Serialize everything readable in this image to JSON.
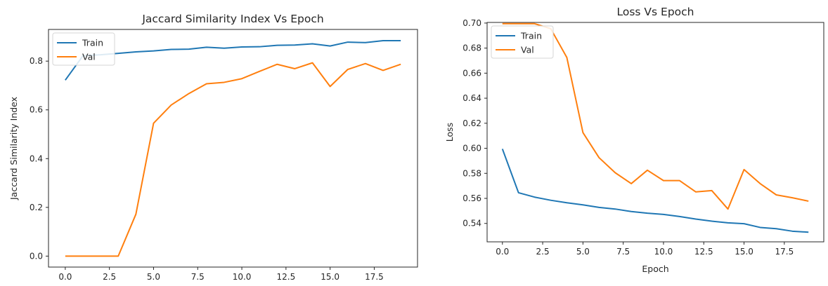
{
  "chart_data": [
    {
      "type": "line",
      "title": "Jaccard Similarity Index Vs Epoch",
      "xlabel": "",
      "ylabel": "Jaccard Similarity Index",
      "xlim": [
        -0.95,
        19.95
      ],
      "ylim": [
        -0.045,
        0.93
      ],
      "x": [
        0,
        1,
        2,
        3,
        4,
        5,
        6,
        7,
        8,
        9,
        10,
        11,
        12,
        13,
        14,
        15,
        16,
        17,
        18,
        19
      ],
      "xticks": [
        0.0,
        2.5,
        5.0,
        7.5,
        10.0,
        12.5,
        15.0,
        17.5
      ],
      "xtick_labels": [
        "0.0",
        "2.5",
        "5.0",
        "7.5",
        "10.0",
        "12.5",
        "15.0",
        "17.5"
      ],
      "yticks": [
        0.0,
        0.2,
        0.4,
        0.6,
        0.8
      ],
      "ytick_labels": [
        "0.0",
        "0.2",
        "0.4",
        "0.6",
        "0.8"
      ],
      "legend_position": "top-left",
      "grid": false,
      "series": [
        {
          "name": "Train",
          "color": "#1f77b4",
          "values": [
            0.722,
            0.822,
            0.826,
            0.832,
            0.838,
            0.842,
            0.848,
            0.849,
            0.857,
            0.853,
            0.858,
            0.859,
            0.865,
            0.866,
            0.871,
            0.862,
            0.878,
            0.876,
            0.884,
            0.884
          ]
        },
        {
          "name": "Val",
          "color": "#ff7f0e",
          "values": [
            0.0,
            0.0,
            0.0,
            0.0,
            0.172,
            0.545,
            0.62,
            0.667,
            0.707,
            0.713,
            0.728,
            0.758,
            0.787,
            0.769,
            0.793,
            0.696,
            0.766,
            0.79,
            0.762,
            0.787
          ]
        }
      ]
    },
    {
      "type": "line",
      "title": "Loss Vs Epoch",
      "xlabel": "Epoch",
      "ylabel": "Loss",
      "xlim": [
        -0.95,
        19.95
      ],
      "ylim": [
        0.5253,
        0.7005
      ],
      "x": [
        0,
        1,
        2,
        3,
        4,
        5,
        6,
        7,
        8,
        9,
        10,
        11,
        12,
        13,
        14,
        15,
        16,
        17,
        18,
        19
      ],
      "xticks": [
        0.0,
        2.5,
        5.0,
        7.5,
        10.0,
        12.5,
        15.0,
        17.5
      ],
      "xtick_labels": [
        "0.0",
        "2.5",
        "5.0",
        "7.5",
        "10.0",
        "12.5",
        "15.0",
        "17.5"
      ],
      "yticks": [
        0.54,
        0.56,
        0.58,
        0.6,
        0.62,
        0.64,
        0.66,
        0.68,
        0.7
      ],
      "ytick_labels": [
        "0.54",
        "0.56",
        "0.58",
        "0.60",
        "0.62",
        "0.64",
        "0.66",
        "0.68",
        "0.70"
      ],
      "legend_position": "top-left",
      "grid": false,
      "series": [
        {
          "name": "Train",
          "color": "#1f77b4",
          "values": [
            0.5995,
            0.5645,
            0.561,
            0.5585,
            0.5565,
            0.5548,
            0.5528,
            0.5515,
            0.5495,
            0.5482,
            0.5472,
            0.5455,
            0.5435,
            0.5418,
            0.5405,
            0.5398,
            0.5368,
            0.5358,
            0.5338,
            0.533
          ]
        },
        {
          "name": "Val",
          "color": "#ff7f0e",
          "values": [
            0.6995,
            0.6995,
            0.6995,
            0.6955,
            0.6725,
            0.6125,
            0.5925,
            0.5805,
            0.5718,
            0.5825,
            0.5742,
            0.5742,
            0.5652,
            0.5662,
            0.5515,
            0.583,
            0.5718,
            0.5628,
            0.5605,
            0.5578
          ]
        }
      ]
    }
  ]
}
